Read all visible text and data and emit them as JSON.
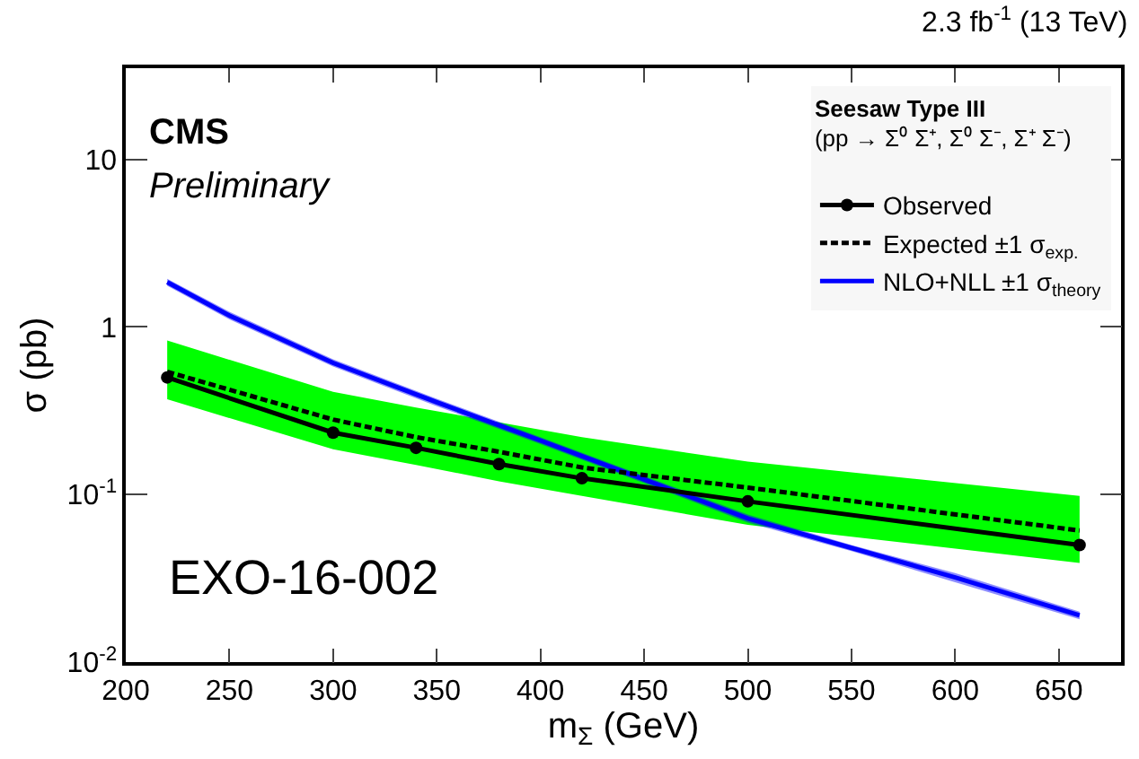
{
  "chart_data": {
    "type": "line",
    "title": "2.3 fb$^{-1}$ (13 TeV)",
    "xlabel": "m$_{Σ}$ (GeV)",
    "ylabel": "σ (pb)",
    "legend_title": "Seesaw Type III",
    "annotations": [
      "CMS",
      "Preliminary",
      "EXO-16-002",
      "(pp → Σ⁰ Σ⁺, Σ⁰ Σ⁻, Σ⁺ Σ⁻)"
    ],
    "log": "y",
    "grid": false,
    "legend": "top right",
    "xlim": [
      200,
      680
    ],
    "xticks": [
      200,
      250,
      300,
      350,
      400,
      450,
      500,
      550,
      600,
      650
    ],
    "ylim": [
      0.01,
      35
    ],
    "yticks": [
      {
        "value": 0.01,
        "label": "10$^{-2}$"
      },
      {
        "value": 0.1,
        "label": "10$^{-1}$"
      },
      1,
      10
    ],
    "series": [
      {
        "name": "Observed",
        "color": "#000000",
        "marker": "circle",
        "line_style": "solid",
        "x": [
          220,
          300,
          340,
          380,
          420,
          500,
          660
        ],
        "values": [
          0.5,
          0.234,
          0.19,
          0.152,
          0.125,
          0.091,
          0.05
        ]
      },
      {
        "name": "Expected ±1 σ$_{exp.}$",
        "color": "#000000",
        "colors": [
          "#00ff00",
          "#00ff00",
          "#00ff00",
          "#00ff00",
          "#00ff00",
          "#00ff00",
          "#00ff00"
        ],
        "marker": "none",
        "line_style": "dotted",
        "x": [
          220,
          300,
          340,
          380,
          420,
          500,
          660
        ],
        "values": [
          0.54,
          0.28,
          0.22,
          0.18,
          0.145,
          0.11,
          0.061
        ],
        "lower": [
          0.37,
          0.186,
          0.15,
          0.12,
          0.098,
          0.066,
          0.039
        ],
        "upper": [
          0.83,
          0.41,
          0.33,
          0.27,
          0.22,
          0.157,
          0.098
        ]
      },
      {
        "name": "NLO+NLL ±1 σ$_{theory}$",
        "color": "#0000ff",
        "marker": "none",
        "line_style": "solid",
        "x": [
          220,
          250,
          300,
          350,
          400,
          450,
          500,
          550,
          600,
          660
        ],
        "values": [
          1.85,
          1.17,
          0.61,
          0.355,
          0.21,
          0.123,
          0.072,
          0.048,
          0.032,
          0.019
        ],
        "lower": [
          1.76,
          1.11,
          0.58,
          0.337,
          0.2,
          0.117,
          0.068,
          0.046,
          0.03,
          0.018
        ],
        "upper": [
          1.94,
          1.23,
          0.64,
          0.373,
          0.22,
          0.129,
          0.076,
          0.05,
          0.034,
          0.02
        ]
      }
    ]
  }
}
